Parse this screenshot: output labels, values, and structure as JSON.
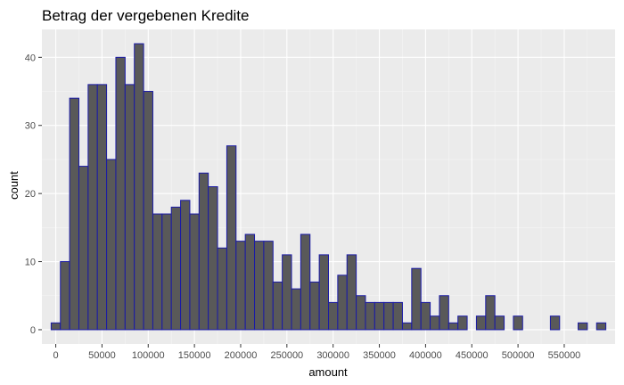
{
  "chart_data": {
    "type": "histogram",
    "title": "Betrag der vergebenen Kredite",
    "xlabel": "amount",
    "ylabel": "count",
    "bin_width": 10000,
    "bin_centers": [
      0,
      10000,
      20000,
      30000,
      40000,
      50000,
      60000,
      70000,
      80000,
      90000,
      100000,
      110000,
      120000,
      130000,
      140000,
      150000,
      160000,
      170000,
      180000,
      190000,
      200000,
      210000,
      220000,
      230000,
      240000,
      250000,
      260000,
      270000,
      280000,
      290000,
      300000,
      310000,
      320000,
      330000,
      340000,
      350000,
      360000,
      370000,
      380000,
      390000,
      400000,
      410000,
      420000,
      430000,
      440000,
      450000,
      460000,
      470000,
      480000,
      490000,
      500000,
      510000,
      520000,
      530000,
      540000,
      550000,
      560000,
      570000,
      580000,
      590000
    ],
    "counts": [
      1,
      10,
      34,
      24,
      36,
      36,
      25,
      40,
      36,
      42,
      35,
      17,
      17,
      18,
      19,
      17,
      23,
      21,
      12,
      27,
      13,
      14,
      13,
      13,
      7,
      11,
      6,
      14,
      7,
      11,
      4,
      8,
      11,
      5,
      4,
      4,
      4,
      4,
      1,
      9,
      4,
      2,
      5,
      1,
      2,
      0,
      2,
      5,
      2,
      0,
      2,
      0,
      0,
      0,
      2,
      0,
      0,
      1,
      0,
      1
    ],
    "x_ticks": [
      "0",
      "50000",
      "100000",
      "150000",
      "200000",
      "250000",
      "300000",
      "350000",
      "400000",
      "450000",
      "500000",
      "550000"
    ],
    "x_tick_values": [
      0,
      50000,
      100000,
      150000,
      200000,
      250000,
      300000,
      350000,
      400000,
      450000,
      500000,
      550000
    ],
    "y_ticks": [
      "0",
      "10",
      "20",
      "30",
      "40"
    ],
    "y_tick_values": [
      0,
      10,
      20,
      30,
      40
    ],
    "xlim": [
      -15000,
      605000
    ],
    "ylim": [
      -2.1,
      44.1
    ],
    "grid": true,
    "colors": {
      "bar_fill": "#595959",
      "bar_outline": "#1a1aa6",
      "panel": "#ebebeb",
      "grid_major": "#ffffff",
      "grid_minor": "#f5f5f5"
    }
  }
}
